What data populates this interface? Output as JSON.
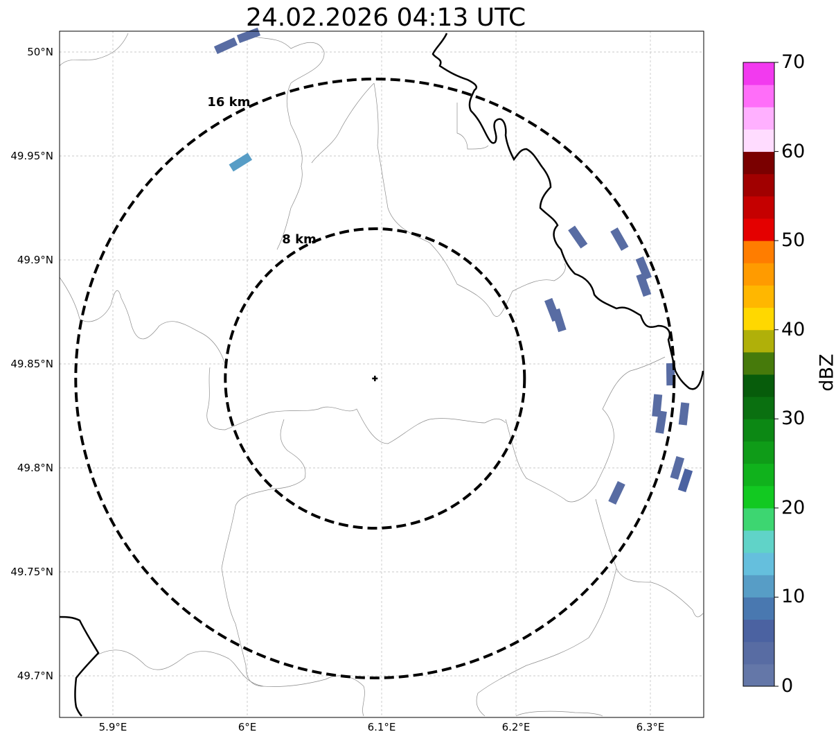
{
  "title": "24.02.2026 04:13 UTC",
  "lat_ticks": [
    "50°N",
    "49.95°N",
    "49.9°N",
    "49.85°N",
    "49.8°N",
    "49.75°N",
    "49.7°N"
  ],
  "lon_ticks": [
    "5.9°E",
    "6°E",
    "6.1°E",
    "6.2°E",
    "6.3°E"
  ],
  "range_rings": [
    {
      "label": "8 km",
      "km": 8
    },
    {
      "label": "16 km",
      "km": 16
    }
  ],
  "radar_site": {
    "lat": 49.843,
    "lon": 6.095
  },
  "colorbar": {
    "label": "dBZ",
    "ticks": [
      "0",
      "10",
      "20",
      "30",
      "40",
      "50",
      "60",
      "70"
    ],
    "min": 0,
    "max": 70,
    "step": 2.5,
    "colors": [
      "#6477a8",
      "#586ca3",
      "#4b62a1",
      "#4978b0",
      "#579dc6",
      "#65bfdd",
      "#60d3c8",
      "#3dd671",
      "#12c921",
      "#10b21c",
      "#0f9c18",
      "#0c8814",
      "#0a7010",
      "#075c0b",
      "#467a0b",
      "#b0b009",
      "#ffd800",
      "#ffb700",
      "#ff9b00",
      "#ff7d00",
      "#e40000",
      "#c50000",
      "#a10000",
      "#7a0000",
      "#ffdcff",
      "#ffb0ff",
      "#ff6ef9",
      "#f23aef"
    ]
  },
  "echoes": [
    {
      "lat": 50.003,
      "lon": 5.984,
      "dbz": 4
    },
    {
      "lat": 50.008,
      "lon": 6.001,
      "dbz": 4
    },
    {
      "lat": 49.947,
      "lon": 5.995,
      "dbz": 12
    },
    {
      "lat": 49.911,
      "lon": 6.246,
      "dbz": 4
    },
    {
      "lat": 49.91,
      "lon": 6.277,
      "dbz": 4
    },
    {
      "lat": 49.896,
      "lon": 6.295,
      "dbz": 4
    },
    {
      "lat": 49.888,
      "lon": 6.295,
      "dbz": 4
    },
    {
      "lat": 49.876,
      "lon": 6.227,
      "dbz": 4
    },
    {
      "lat": 49.871,
      "lon": 6.232,
      "dbz": 4
    },
    {
      "lat": 49.845,
      "lon": 6.315,
      "dbz": 4
    },
    {
      "lat": 49.83,
      "lon": 6.305,
      "dbz": 4
    },
    {
      "lat": 49.822,
      "lon": 6.308,
      "dbz": 4
    },
    {
      "lat": 49.826,
      "lon": 6.325,
      "dbz": 4
    },
    {
      "lat": 49.8,
      "lon": 6.32,
      "dbz": 4
    },
    {
      "lat": 49.794,
      "lon": 6.326,
      "dbz": 7
    },
    {
      "lat": 49.788,
      "lon": 6.275,
      "dbz": 4
    }
  ]
}
